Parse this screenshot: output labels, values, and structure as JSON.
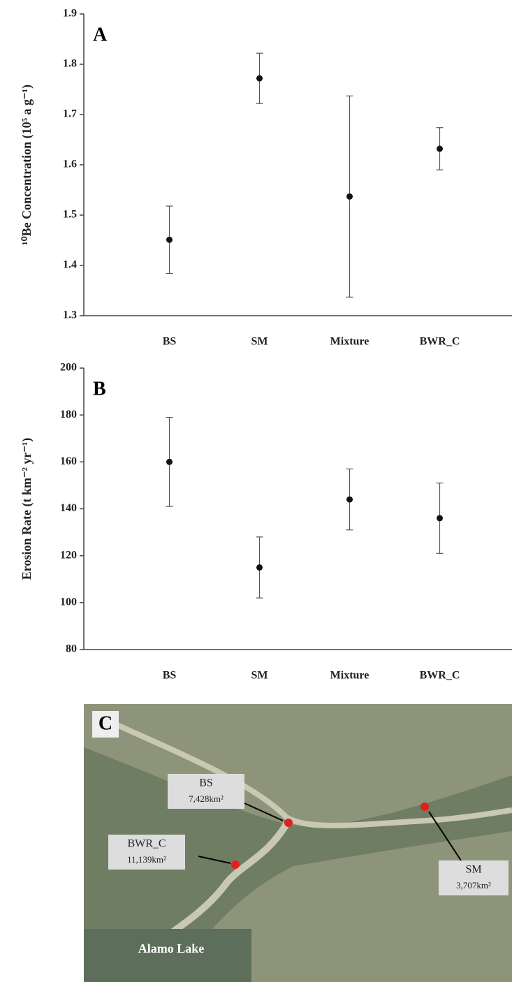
{
  "chart_data": [
    {
      "type": "errorbar",
      "panel_label": "A",
      "y_label": "¹⁰Be Concentration (10⁵ a g⁻¹)",
      "categories": [
        "BS",
        "SM",
        "Mixture",
        "BWR_C"
      ],
      "values": [
        1.451,
        1.772,
        1.537,
        1.632
      ],
      "errors": [
        0.067,
        0.05,
        0.2,
        0.042
      ],
      "color": "#111",
      "ylim": [
        1.3,
        1.9
      ],
      "yticks": [
        1.3,
        1.4,
        1.5,
        1.6,
        1.7,
        1.8,
        1.9
      ]
    },
    {
      "type": "errorbar",
      "panel_label": "B",
      "y_label": "Erosion Rate (t km⁻² yr⁻¹)",
      "categories": [
        "BS",
        "SM",
        "Mixture",
        "BWR_C"
      ],
      "values": [
        160,
        115,
        144,
        136
      ],
      "errors": [
        19,
        13,
        13,
        15
      ],
      "color": "#111",
      "ylim": [
        80,
        200
      ],
      "yticks": [
        80,
        100,
        120,
        140,
        160,
        180,
        200
      ]
    }
  ],
  "map": {
    "panel_label": "C",
    "sites": [
      {
        "name": "BS",
        "area": "7,428km²"
      },
      {
        "name": "BWR_C",
        "area": "11,139km²"
      },
      {
        "name": "SM",
        "area": "3,707km²"
      }
    ],
    "lake": "Alamo Lake"
  }
}
